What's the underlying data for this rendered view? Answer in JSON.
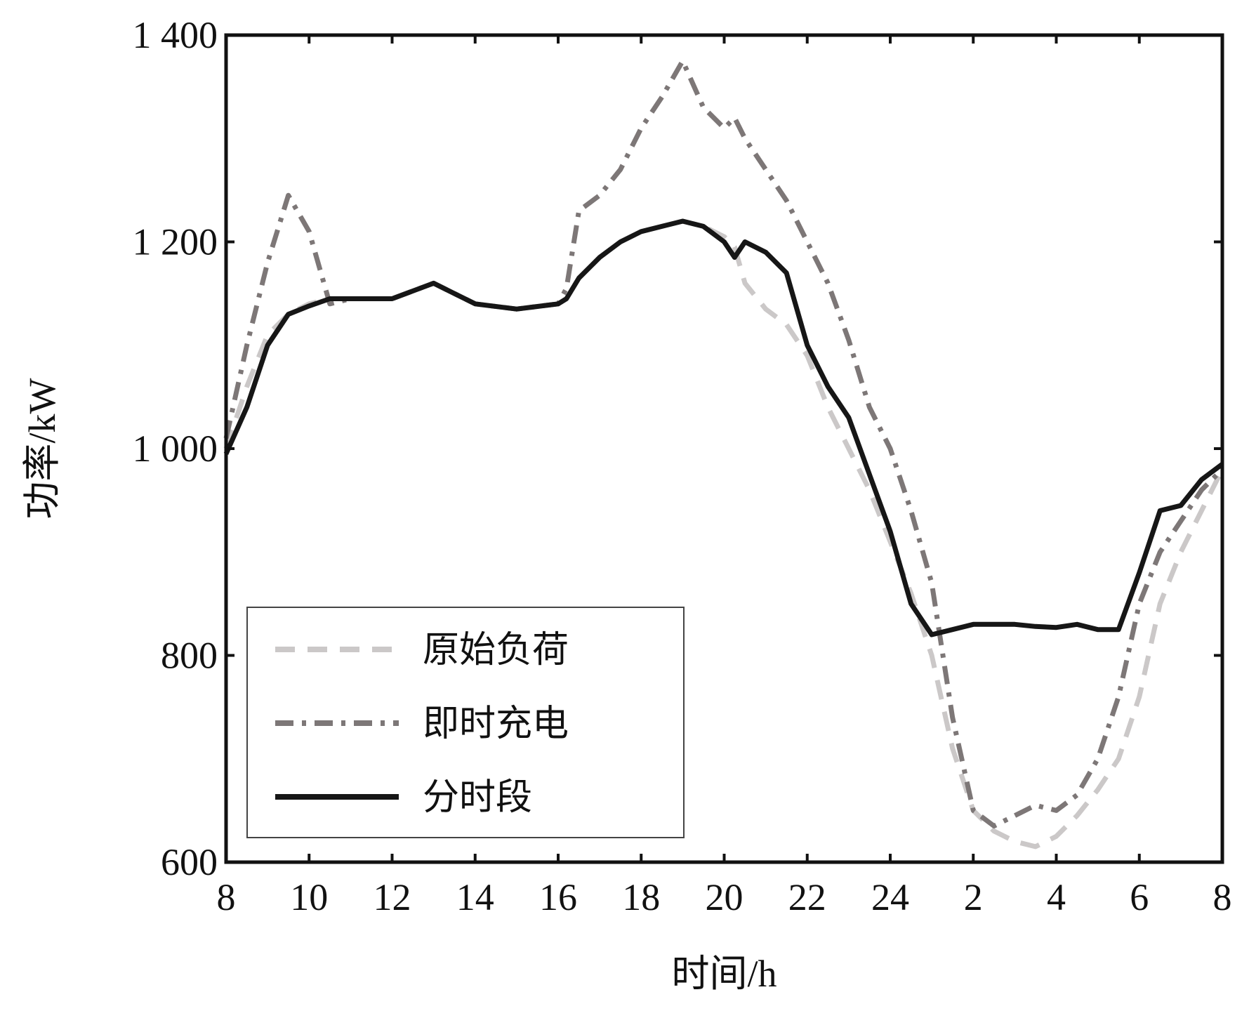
{
  "chart_data": {
    "type": "line",
    "xlabel": "时间/h",
    "ylabel": "功率/kW",
    "x_tick_labels": [
      "8",
      "10",
      "12",
      "14",
      "16",
      "18",
      "20",
      "22",
      "24",
      "2",
      "4",
      "6",
      "8"
    ],
    "y_tick_labels": [
      "600",
      "800",
      "1 000",
      "1 200",
      "1 400"
    ],
    "xlim": [
      8,
      32
    ],
    "ylim": [
      600,
      1400
    ],
    "grid": false,
    "legend_position": "bottom-left",
    "x_hours": [
      8,
      8.5,
      9,
      9.5,
      10,
      10.5,
      11,
      12,
      13,
      13.5,
      14,
      15,
      16,
      16.2,
      16.5,
      17,
      17.5,
      18,
      18.5,
      19,
      19.5,
      20,
      20.25,
      20.5,
      21,
      21.5,
      22,
      22.5,
      23,
      23.5,
      24,
      24.5,
      25,
      25.5,
      26,
      26.5,
      27,
      27.5,
      28,
      28.5,
      29,
      29.5,
      30,
      30.5,
      31,
      31.5,
      32
    ],
    "series": [
      {
        "name": "原始负荷",
        "color": "#cbc8c8",
        "dash": "dashed",
        "values": [
          1000,
          1060,
          1110,
          1130,
          1140,
          1145,
          1145,
          1145,
          1160,
          1150,
          1140,
          1135,
          1140,
          1145,
          1165,
          1185,
          1200,
          1210,
          1215,
          1220,
          1215,
          1205,
          1195,
          1160,
          1135,
          1120,
          1090,
          1040,
          1000,
          960,
          910,
          860,
          800,
          710,
          650,
          630,
          620,
          615,
          625,
          645,
          670,
          700,
          760,
          850,
          900,
          940,
          980
        ]
      },
      {
        "name": "即时充电",
        "color": "#7d7777",
        "dash": "dashdot",
        "values": [
          1010,
          1100,
          1180,
          1245,
          1210,
          1140,
          1145,
          1145,
          1160,
          1150,
          1140,
          1135,
          1140,
          1155,
          1230,
          1245,
          1270,
          1310,
          1340,
          1375,
          1330,
          1310,
          1320,
          1300,
          1270,
          1240,
          1200,
          1160,
          1105,
          1040,
          1000,
          940,
          870,
          740,
          650,
          635,
          645,
          655,
          650,
          665,
          700,
          760,
          850,
          900,
          930,
          960,
          980
        ]
      },
      {
        "name": "分时段",
        "color": "#161616",
        "dash": "solid",
        "values": [
          995,
          1040,
          1100,
          1130,
          1138,
          1145,
          1145,
          1145,
          1160,
          1150,
          1140,
          1135,
          1140,
          1145,
          1165,
          1185,
          1200,
          1210,
          1215,
          1220,
          1215,
          1200,
          1185,
          1200,
          1190,
          1170,
          1100,
          1060,
          1030,
          975,
          920,
          850,
          820,
          825,
          830,
          830,
          830,
          828,
          827,
          830,
          825,
          825,
          880,
          940,
          945,
          970,
          985
        ]
      }
    ]
  }
}
